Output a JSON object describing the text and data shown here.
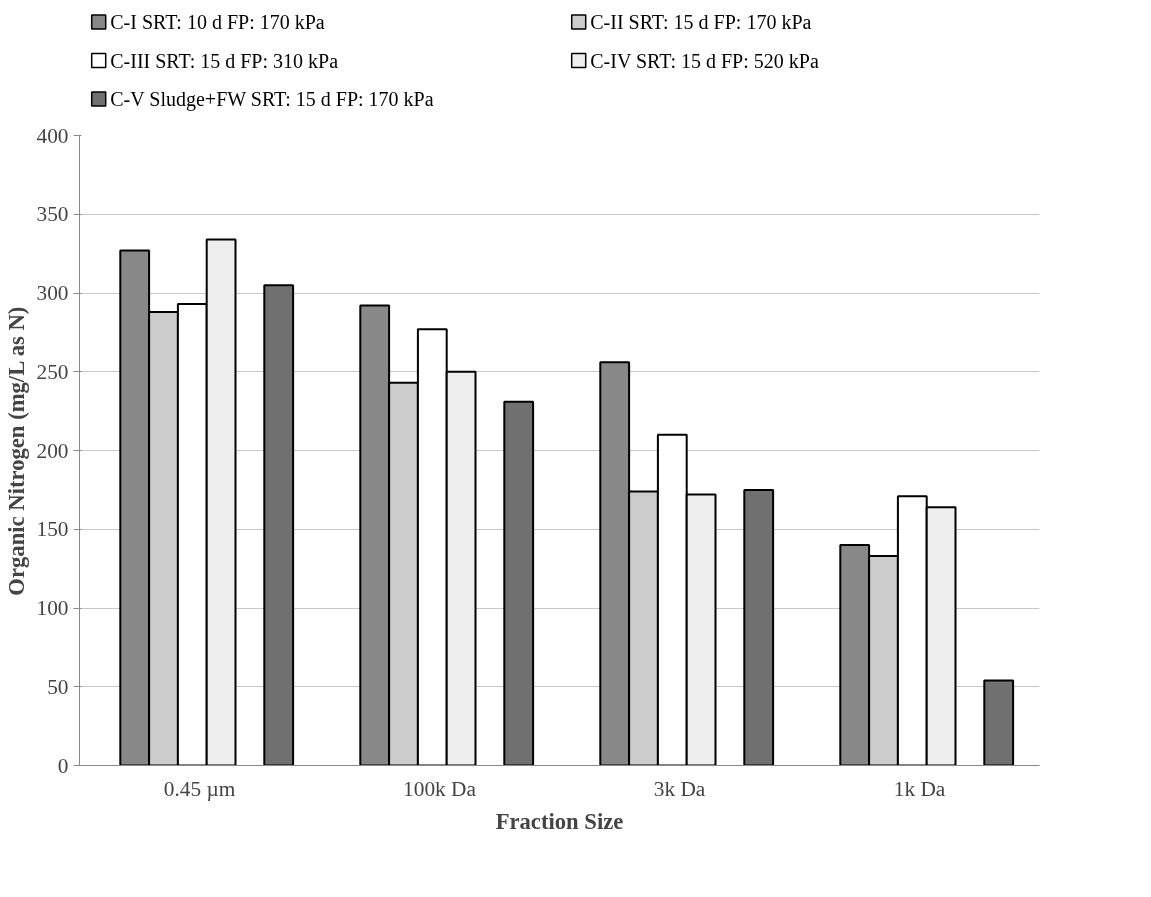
{
  "chart_data": {
    "type": "bar",
    "xlabel": "Fraction Size",
    "ylabel": "Organic Nitrogen (mg/L as N)",
    "categories": [
      "0.45 µm",
      "100k Da",
      "3k Da",
      "1k Da"
    ],
    "series": [
      {
        "name": "C-I  SRT: 10 d  FP: 170 kPa",
        "color": "#888888",
        "values": [
          327,
          292,
          256,
          140
        ]
      },
      {
        "name": "C-II  SRT: 15 d  FP: 170 kPa",
        "color": "#cccccc",
        "values": [
          288,
          243,
          174,
          133
        ]
      },
      {
        "name": "C-III  SRT: 15 d  FP: 310 kPa",
        "color": "#ffffff",
        "values": [
          293,
          277,
          210,
          171
        ]
      },
      {
        "name": "C-IV  SRT: 15 d  FP: 520 kPa",
        "color": "#eeeeee",
        "values": [
          334,
          250,
          172,
          164
        ]
      },
      {
        "name": "C-V  Sludge+FW   SRT: 15 d  FP: 170 kPa",
        "color": "#707070",
        "values": [
          305,
          231,
          175,
          54
        ]
      }
    ],
    "ylim": [
      0,
      400
    ],
    "yticks": [
      0,
      50,
      100,
      150,
      200,
      250,
      300,
      350,
      400
    ],
    "grid": "y",
    "legend": "top"
  }
}
